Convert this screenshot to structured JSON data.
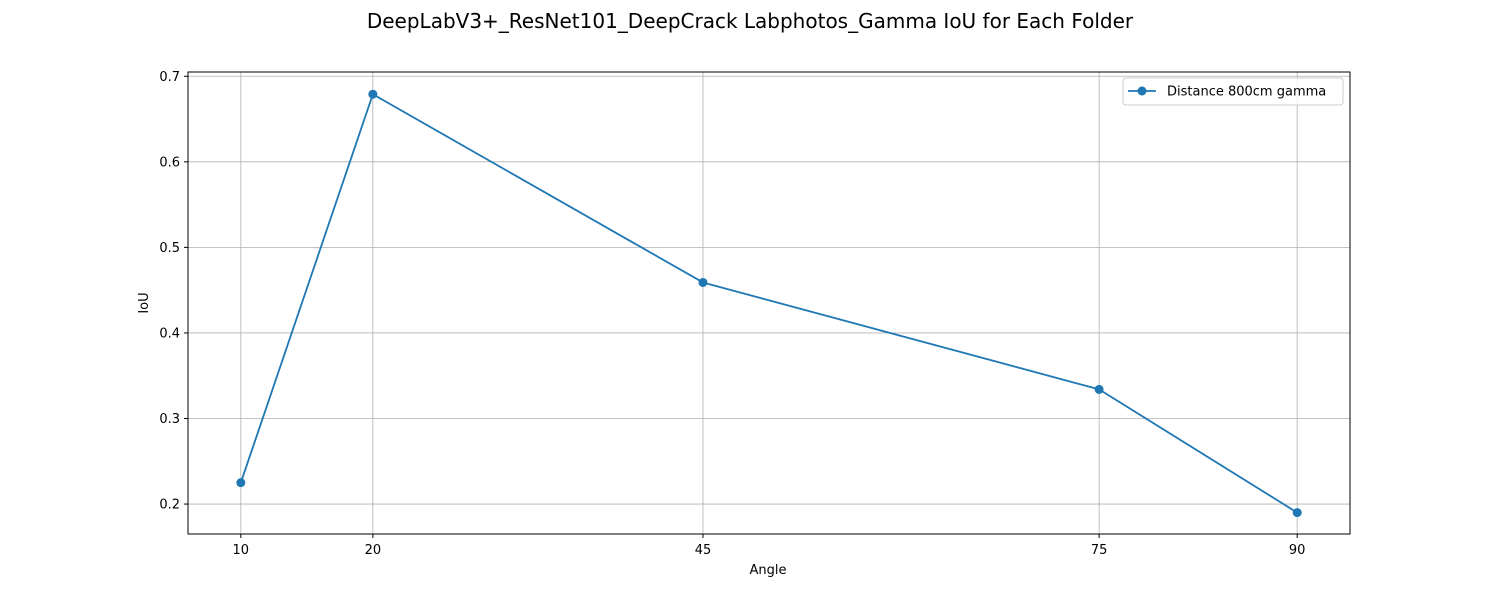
{
  "chart_data": {
    "type": "line",
    "title": "DeepLabV3+_ResNet101_DeepCrack Labphotos_Gamma IoU for Each Folder",
    "xlabel": "Angle",
    "ylabel": "IoU",
    "x": [
      10,
      20,
      45,
      75,
      90
    ],
    "x_ticks": [
      "10",
      "20",
      "45",
      "75",
      "90"
    ],
    "y_ticks": [
      "0.2",
      "0.3",
      "0.4",
      "0.5",
      "0.6",
      "0.7"
    ],
    "xlim": [
      6,
      94
    ],
    "ylim": [
      0.165,
      0.705
    ],
    "grid": true,
    "legend_position": "upper right",
    "series": [
      {
        "name": "Distance 800cm gamma",
        "color": "#1f77b4",
        "marker": "circle",
        "values": [
          0.225,
          0.679,
          0.459,
          0.334,
          0.19
        ]
      }
    ]
  }
}
